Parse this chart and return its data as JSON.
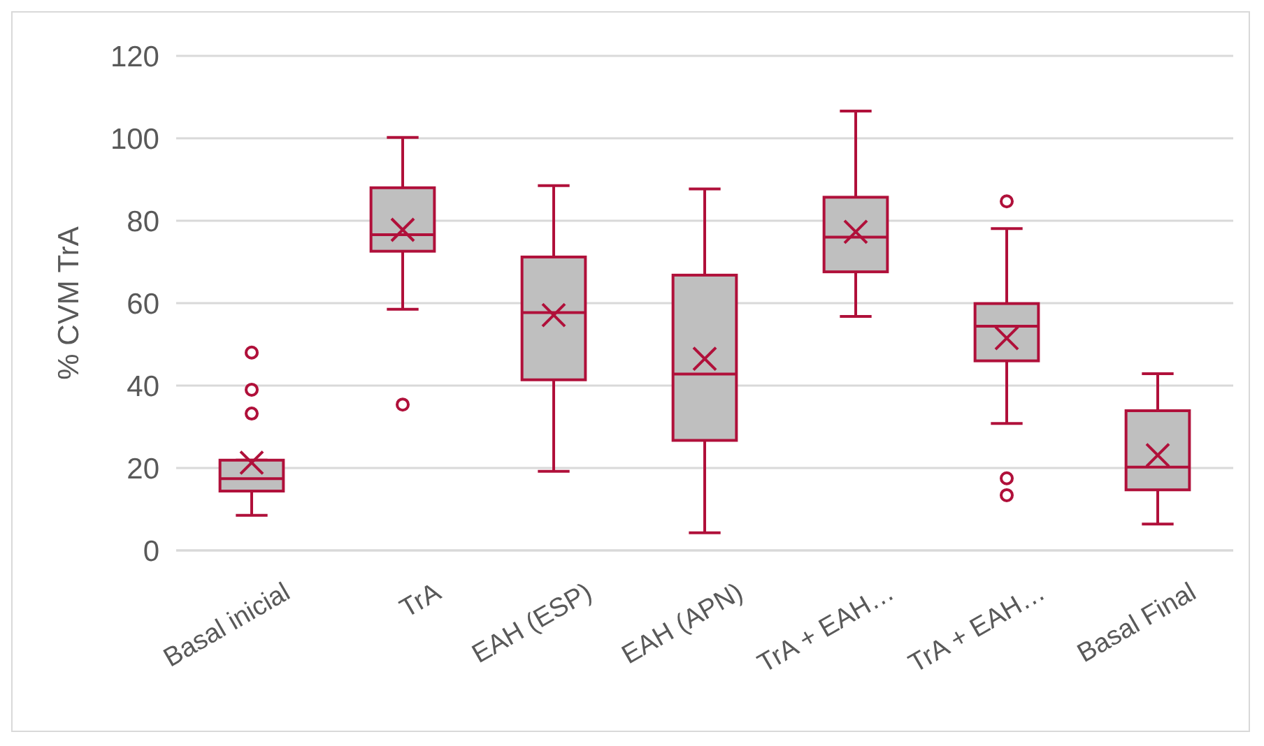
{
  "chart_data": {
    "type": "box",
    "ylabel": "% CVM TrA",
    "categories": [
      "Basal inicial",
      "TrA",
      "EAH (ESP)",
      "EAH (APN)",
      "TrA + EAH…",
      "TrA + EAH…",
      "Basal Final"
    ],
    "series": [
      {
        "color": "#b0103a",
        "boxes": [
          {
            "low": 8.5,
            "q1": 14.4,
            "median": 17.4,
            "q3": 21.9,
            "high": 21.9,
            "mean": 21.3,
            "outliers": [
              48,
              39,
              33.2
            ]
          },
          {
            "low": 58.5,
            "q1": 72.6,
            "median": 76.6,
            "q3": 88,
            "high": 100.2,
            "mean": 77.8,
            "outliers": [
              35.4
            ]
          },
          {
            "low": 19.2,
            "q1": 41.4,
            "median": 57.7,
            "q3": 71.2,
            "high": 88.5,
            "mean": 57.1
          },
          {
            "low": 4.3,
            "q1": 26.7,
            "median": 42.8,
            "q3": 66.8,
            "high": 87.7,
            "mean": 46.5
          },
          {
            "low": 56.8,
            "q1": 67.6,
            "median": 76,
            "q3": 85.7,
            "high": 106.6,
            "mean": 77.3
          },
          {
            "low": 30.8,
            "q1": 46,
            "median": 54.4,
            "q3": 59.9,
            "high": 78.1,
            "mean": 51.5,
            "outliers": [
              84.7,
              17.5,
              13.4
            ]
          },
          {
            "low": 6.4,
            "q1": 14.7,
            "median": 20.2,
            "q3": 33.9,
            "high": 42.9,
            "mean": 23.1
          }
        ]
      }
    ],
    "ylim": [
      0,
      120
    ],
    "yticks": [
      0,
      20,
      40,
      60,
      80,
      100,
      120
    ],
    "grid": "y",
    "marker": "cross"
  }
}
